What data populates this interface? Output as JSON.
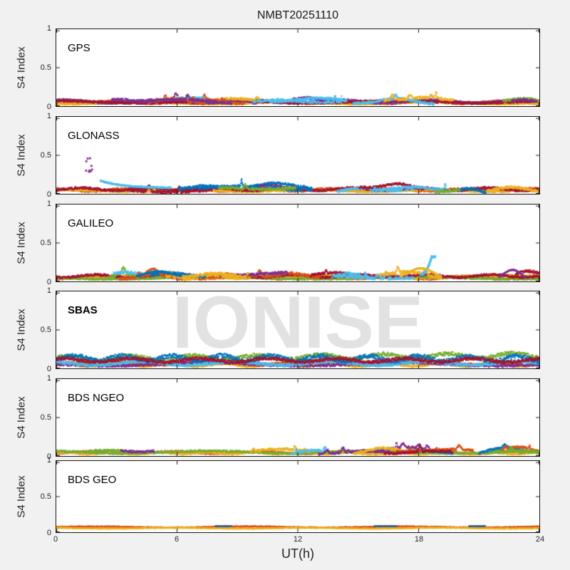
{
  "figure": {
    "background": "#f1f1f1",
    "plot_background": "#ffffff",
    "axis_color": "#1a1a1a",
    "text_color": "#262626",
    "watermark": {
      "text": "IONISE",
      "color": "#e2e2e2"
    }
  },
  "axes": {
    "ytick_display": [
      "1",
      "0.5",
      "0"
    ],
    "xtick_display": [
      "0",
      "6",
      "12",
      "18",
      "24"
    ]
  },
  "chart_data": {
    "type": "line",
    "title": "NMBT20251110",
    "xlabel": "UT(h)",
    "ylabel": "S4 Index",
    "xlim": [
      0,
      24
    ],
    "ylim": [
      0,
      1
    ],
    "xticks": [
      0,
      6,
      12,
      18,
      24
    ],
    "yticks": [
      0,
      0.5,
      1
    ],
    "grid": false,
    "legend": "none",
    "description": "S4 amplitude scintillation index vs universal time for six GNSS constellations; many satellite traces per panel in MATLAB default colors, all staying mostly below 0.2",
    "palette": [
      "#0072BD",
      "#D95319",
      "#EDB120",
      "#7E2F8E",
      "#77AC30",
      "#4DBEEE",
      "#A2142F"
    ],
    "panels": [
      {
        "label": "GPS",
        "bold": false,
        "style": "passes",
        "seed": 11,
        "passes": 14,
        "base_range": [
          0.03,
          0.09
        ],
        "noise": 0.016,
        "arc_amp": 0.05,
        "bump_amp": 0.08,
        "carpet": [
          {
            "color": "#D95319",
            "base": 0.05,
            "noise": 0.013
          },
          {
            "color": "#EDB120",
            "base": 0.038,
            "noise": 0.01
          },
          {
            "color": "#7E2F8E",
            "base": 0.06,
            "noise": 0.016
          },
          {
            "color": "#A2142F",
            "base": 0.055,
            "noise": 0.013
          }
        ],
        "events": []
      },
      {
        "label": "GLONASS",
        "bold": false,
        "style": "passes",
        "seed": 22,
        "passes": 13,
        "base_range": [
          0.03,
          0.09
        ],
        "noise": 0.016,
        "arc_amp": 0.06,
        "bump_amp": 0.09,
        "carpet": [
          {
            "color": "#D95319",
            "base": 0.05,
            "noise": 0.014
          },
          {
            "color": "#EDB120",
            "base": 0.04,
            "noise": 0.01
          },
          {
            "color": "#A2142F",
            "base": 0.06,
            "noise": 0.015
          }
        ],
        "events": [
          {
            "type": "scatter",
            "color": "#7E2F8E",
            "t": 1.65,
            "t_spread": 0.18,
            "ymin": 0.28,
            "ymax": 0.47,
            "count": 9
          },
          {
            "type": "decay",
            "color": "#4DBEEE",
            "t0": 2.2,
            "t1": 5.7,
            "y0": 0.17,
            "y1": 0.075
          }
        ]
      },
      {
        "label": "GALILEO",
        "bold": false,
        "style": "passes",
        "seed": 33,
        "passes": 14,
        "base_range": [
          0.04,
          0.1
        ],
        "noise": 0.018,
        "arc_amp": 0.08,
        "bump_amp": 0.08,
        "carpet": [
          {
            "color": "#D95319",
            "base": 0.05,
            "noise": 0.014
          },
          {
            "color": "#EDB120",
            "base": 0.06,
            "noise": 0.014
          },
          {
            "color": "#77AC30",
            "base": 0.045,
            "noise": 0.012
          },
          {
            "color": "#A2142F",
            "base": 0.07,
            "noise": 0.015
          }
        ],
        "events": [
          {
            "type": "rise",
            "color": "#4DBEEE",
            "t0": 18.1,
            "t1": 18.65,
            "y0": 0.09,
            "y1": 0.32
          },
          {
            "type": "arc",
            "color": "#EDB120",
            "t0": 17.1,
            "t1": 19.1,
            "y0": 0.07,
            "peak": 0.17
          },
          {
            "type": "arc",
            "color": "#7E2F8E",
            "t0": 22.0,
            "t1": 23.3,
            "y0": 0.06,
            "peak": 0.15
          },
          {
            "type": "arc",
            "color": "#D95319",
            "t0": 4.2,
            "t1": 5.4,
            "y0": 0.06,
            "peak": 0.16
          },
          {
            "type": "arc",
            "color": "#0072BD",
            "t0": 4.0,
            "t1": 6.2,
            "y0": 0.07,
            "peak": 0.13
          }
        ]
      },
      {
        "label": "SBAS",
        "bold": true,
        "style": "continuous",
        "seed": 44,
        "series": [
          {
            "color": "#EDB120",
            "base": 0.045,
            "noise": 0.015,
            "trend": 0
          },
          {
            "color": "#D95319",
            "base": 0.07,
            "noise": 0.02,
            "trend": 0
          },
          {
            "color": "#7E2F8E",
            "base": 0.055,
            "noise": 0.018,
            "trend": 0
          },
          {
            "color": "#4DBEEE",
            "base": 0.065,
            "noise": 0.02,
            "trend": 0
          },
          {
            "color": "#77AC30",
            "base": 0.125,
            "noise": 0.025,
            "trend": 0.045
          },
          {
            "color": "#0072BD",
            "base": 0.135,
            "noise": 0.028,
            "trend": -0.01
          },
          {
            "color": "#A2142F",
            "base": 0.105,
            "noise": 0.02,
            "trend": 0
          }
        ],
        "events": []
      },
      {
        "label": "BDS NGEO",
        "bold": false,
        "style": "passes",
        "seed": 55,
        "passes": 15,
        "base_range": [
          0.03,
          0.07
        ],
        "noise": 0.014,
        "arc_amp": 0.05,
        "bump_amp": 0.06,
        "carpet": [
          {
            "color": "#D95319",
            "base": 0.045,
            "noise": 0.012
          },
          {
            "color": "#EDB120",
            "base": 0.035,
            "noise": 0.01
          },
          {
            "color": "#77AC30",
            "base": 0.05,
            "noise": 0.013
          }
        ],
        "events": []
      },
      {
        "label": "BDS GEO",
        "bold": false,
        "style": "continuous",
        "seed": 66,
        "series": [
          {
            "color": "#D95319",
            "base": 0.073,
            "noise": 0.006,
            "trend": 0
          },
          {
            "color": "#EDB120",
            "base": 0.057,
            "noise": 0.005,
            "trend": 0
          }
        ],
        "events": [
          {
            "type": "segments",
            "color": "#3A5F90",
            "y": 0.085,
            "noise": 0.005,
            "ranges": [
              [
                7.9,
                8.7
              ],
              [
                15.8,
                16.9
              ],
              [
                20.5,
                21.3
              ]
            ]
          }
        ]
      }
    ]
  }
}
